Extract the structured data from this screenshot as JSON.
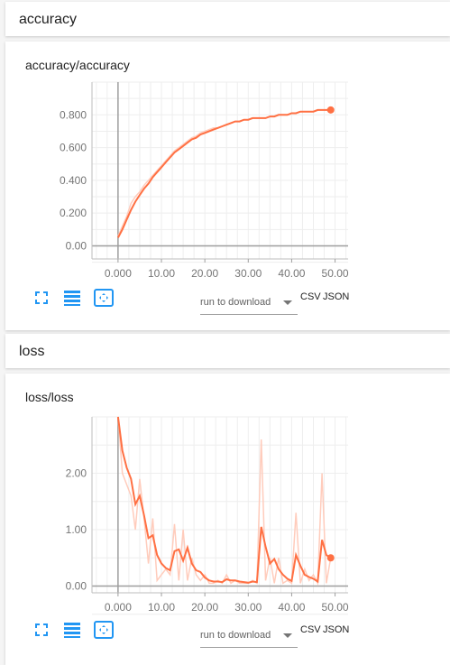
{
  "sections": [
    {
      "header": "accuracy",
      "card_title": "accuracy/accuracy",
      "run_dropdown": "run to download",
      "links": {
        "csv": "CSV",
        "json": "JSON"
      },
      "chart_data": {
        "type": "line",
        "title": "accuracy/accuracy",
        "xticks": [
          "0.000",
          "10.00",
          "20.00",
          "30.00",
          "40.00",
          "50.00"
        ],
        "yticks": [
          "0.00",
          "0.200",
          "0.400",
          "0.600",
          "0.800"
        ],
        "xlim": [
          -6,
          53
        ],
        "ylim": [
          -0.08,
          1.0
        ],
        "color_smoothed": "#ff7043",
        "color_raw": "#ffccbc",
        "series_raw": {
          "x": [
            0,
            1,
            2,
            3,
            4,
            5,
            6,
            7,
            8,
            9,
            10,
            11,
            12,
            13,
            14,
            15,
            16,
            17,
            18,
            19,
            20,
            21,
            22,
            23,
            24,
            25,
            26,
            27,
            28,
            29,
            30,
            31,
            32,
            33,
            34,
            35,
            36,
            37,
            38,
            39,
            40,
            41,
            42,
            43,
            44,
            45,
            46,
            47,
            48,
            49
          ],
          "values": [
            0.06,
            0.12,
            0.18,
            0.26,
            0.3,
            0.33,
            0.37,
            0.4,
            0.43,
            0.46,
            0.49,
            0.52,
            0.55,
            0.58,
            0.6,
            0.62,
            0.64,
            0.66,
            0.67,
            0.69,
            0.7,
            0.71,
            0.72,
            0.72,
            0.73,
            0.74,
            0.75,
            0.76,
            0.76,
            0.77,
            0.77,
            0.78,
            0.78,
            0.78,
            0.78,
            0.79,
            0.79,
            0.8,
            0.8,
            0.8,
            0.81,
            0.81,
            0.82,
            0.82,
            0.82,
            0.82,
            0.83,
            0.83,
            0.83,
            0.83
          ]
        },
        "series_smoothed": {
          "x": [
            0,
            1,
            2,
            3,
            4,
            5,
            6,
            7,
            8,
            9,
            10,
            11,
            12,
            13,
            14,
            15,
            16,
            17,
            18,
            19,
            20,
            21,
            22,
            23,
            24,
            25,
            26,
            27,
            28,
            29,
            30,
            31,
            32,
            33,
            34,
            35,
            36,
            37,
            38,
            39,
            40,
            41,
            42,
            43,
            44,
            45,
            46,
            47,
            48,
            49
          ],
          "values": [
            0.05,
            0.1,
            0.16,
            0.22,
            0.27,
            0.31,
            0.35,
            0.38,
            0.42,
            0.45,
            0.48,
            0.51,
            0.54,
            0.57,
            0.59,
            0.61,
            0.63,
            0.65,
            0.66,
            0.68,
            0.69,
            0.7,
            0.71,
            0.72,
            0.73,
            0.74,
            0.75,
            0.76,
            0.76,
            0.77,
            0.77,
            0.78,
            0.78,
            0.78,
            0.78,
            0.79,
            0.79,
            0.8,
            0.8,
            0.8,
            0.81,
            0.81,
            0.82,
            0.82,
            0.82,
            0.82,
            0.83,
            0.83,
            0.83,
            0.83
          ]
        }
      }
    },
    {
      "header": "loss",
      "card_title": "loss/loss",
      "run_dropdown": "run to download",
      "links": {
        "csv": "CSV",
        "json": "JSON"
      },
      "chart_data": {
        "type": "line",
        "title": "loss/loss",
        "xticks": [
          "0.000",
          "10.00",
          "20.00",
          "30.00",
          "40.00",
          "50.00"
        ],
        "yticks": [
          "0.00",
          "1.00",
          "2.00"
        ],
        "xlim": [
          -6,
          53
        ],
        "ylim": [
          -0.12,
          3.0
        ],
        "color_smoothed": "#ff7043",
        "color_raw": "#ffccbc",
        "series_raw": {
          "x": [
            0,
            1,
            2,
            3,
            4,
            5,
            6,
            7,
            8,
            9,
            10,
            11,
            12,
            13,
            14,
            15,
            16,
            17,
            18,
            19,
            20,
            21,
            22,
            23,
            24,
            25,
            26,
            27,
            28,
            29,
            30,
            31,
            32,
            33,
            34,
            35,
            36,
            37,
            38,
            39,
            40,
            41,
            42,
            43,
            44,
            45,
            46,
            47,
            48,
            49
          ],
          "values": [
            3.0,
            2.0,
            1.8,
            1.6,
            1.0,
            1.9,
            1.2,
            0.4,
            1.2,
            0.1,
            0.2,
            0.3,
            0.2,
            1.1,
            0.1,
            1.0,
            0.1,
            0.5,
            0.2,
            0.1,
            0.2,
            0.05,
            0.05,
            0.1,
            0.05,
            0.2,
            0.05,
            0.1,
            0.05,
            0.05,
            0.05,
            0.1,
            0.05,
            2.6,
            0.1,
            0.5,
            0.05,
            0.5,
            0.05,
            0.1,
            0.05,
            1.3,
            0.05,
            0.3,
            0.1,
            0.2,
            0.05,
            2.0,
            0.05,
            0.5
          ]
        },
        "series_smoothed": {
          "x": [
            0,
            1,
            2,
            3,
            4,
            5,
            6,
            7,
            8,
            9,
            10,
            11,
            12,
            13,
            14,
            15,
            16,
            17,
            18,
            19,
            20,
            21,
            22,
            23,
            24,
            25,
            26,
            27,
            28,
            29,
            30,
            31,
            32,
            33,
            34,
            35,
            36,
            37,
            38,
            39,
            40,
            41,
            42,
            43,
            44,
            45,
            46,
            47,
            48,
            49
          ],
          "values": [
            3.0,
            2.4,
            2.1,
            1.9,
            1.45,
            1.6,
            1.25,
            0.85,
            0.9,
            0.55,
            0.4,
            0.32,
            0.28,
            0.62,
            0.65,
            0.45,
            0.68,
            0.4,
            0.28,
            0.25,
            0.15,
            0.1,
            0.08,
            0.08,
            0.07,
            0.12,
            0.1,
            0.1,
            0.08,
            0.07,
            0.06,
            0.08,
            0.07,
            1.05,
            0.7,
            0.4,
            0.48,
            0.3,
            0.2,
            0.13,
            0.09,
            0.55,
            0.36,
            0.2,
            0.16,
            0.13,
            0.08,
            0.82,
            0.55,
            0.5
          ]
        }
      }
    }
  ]
}
